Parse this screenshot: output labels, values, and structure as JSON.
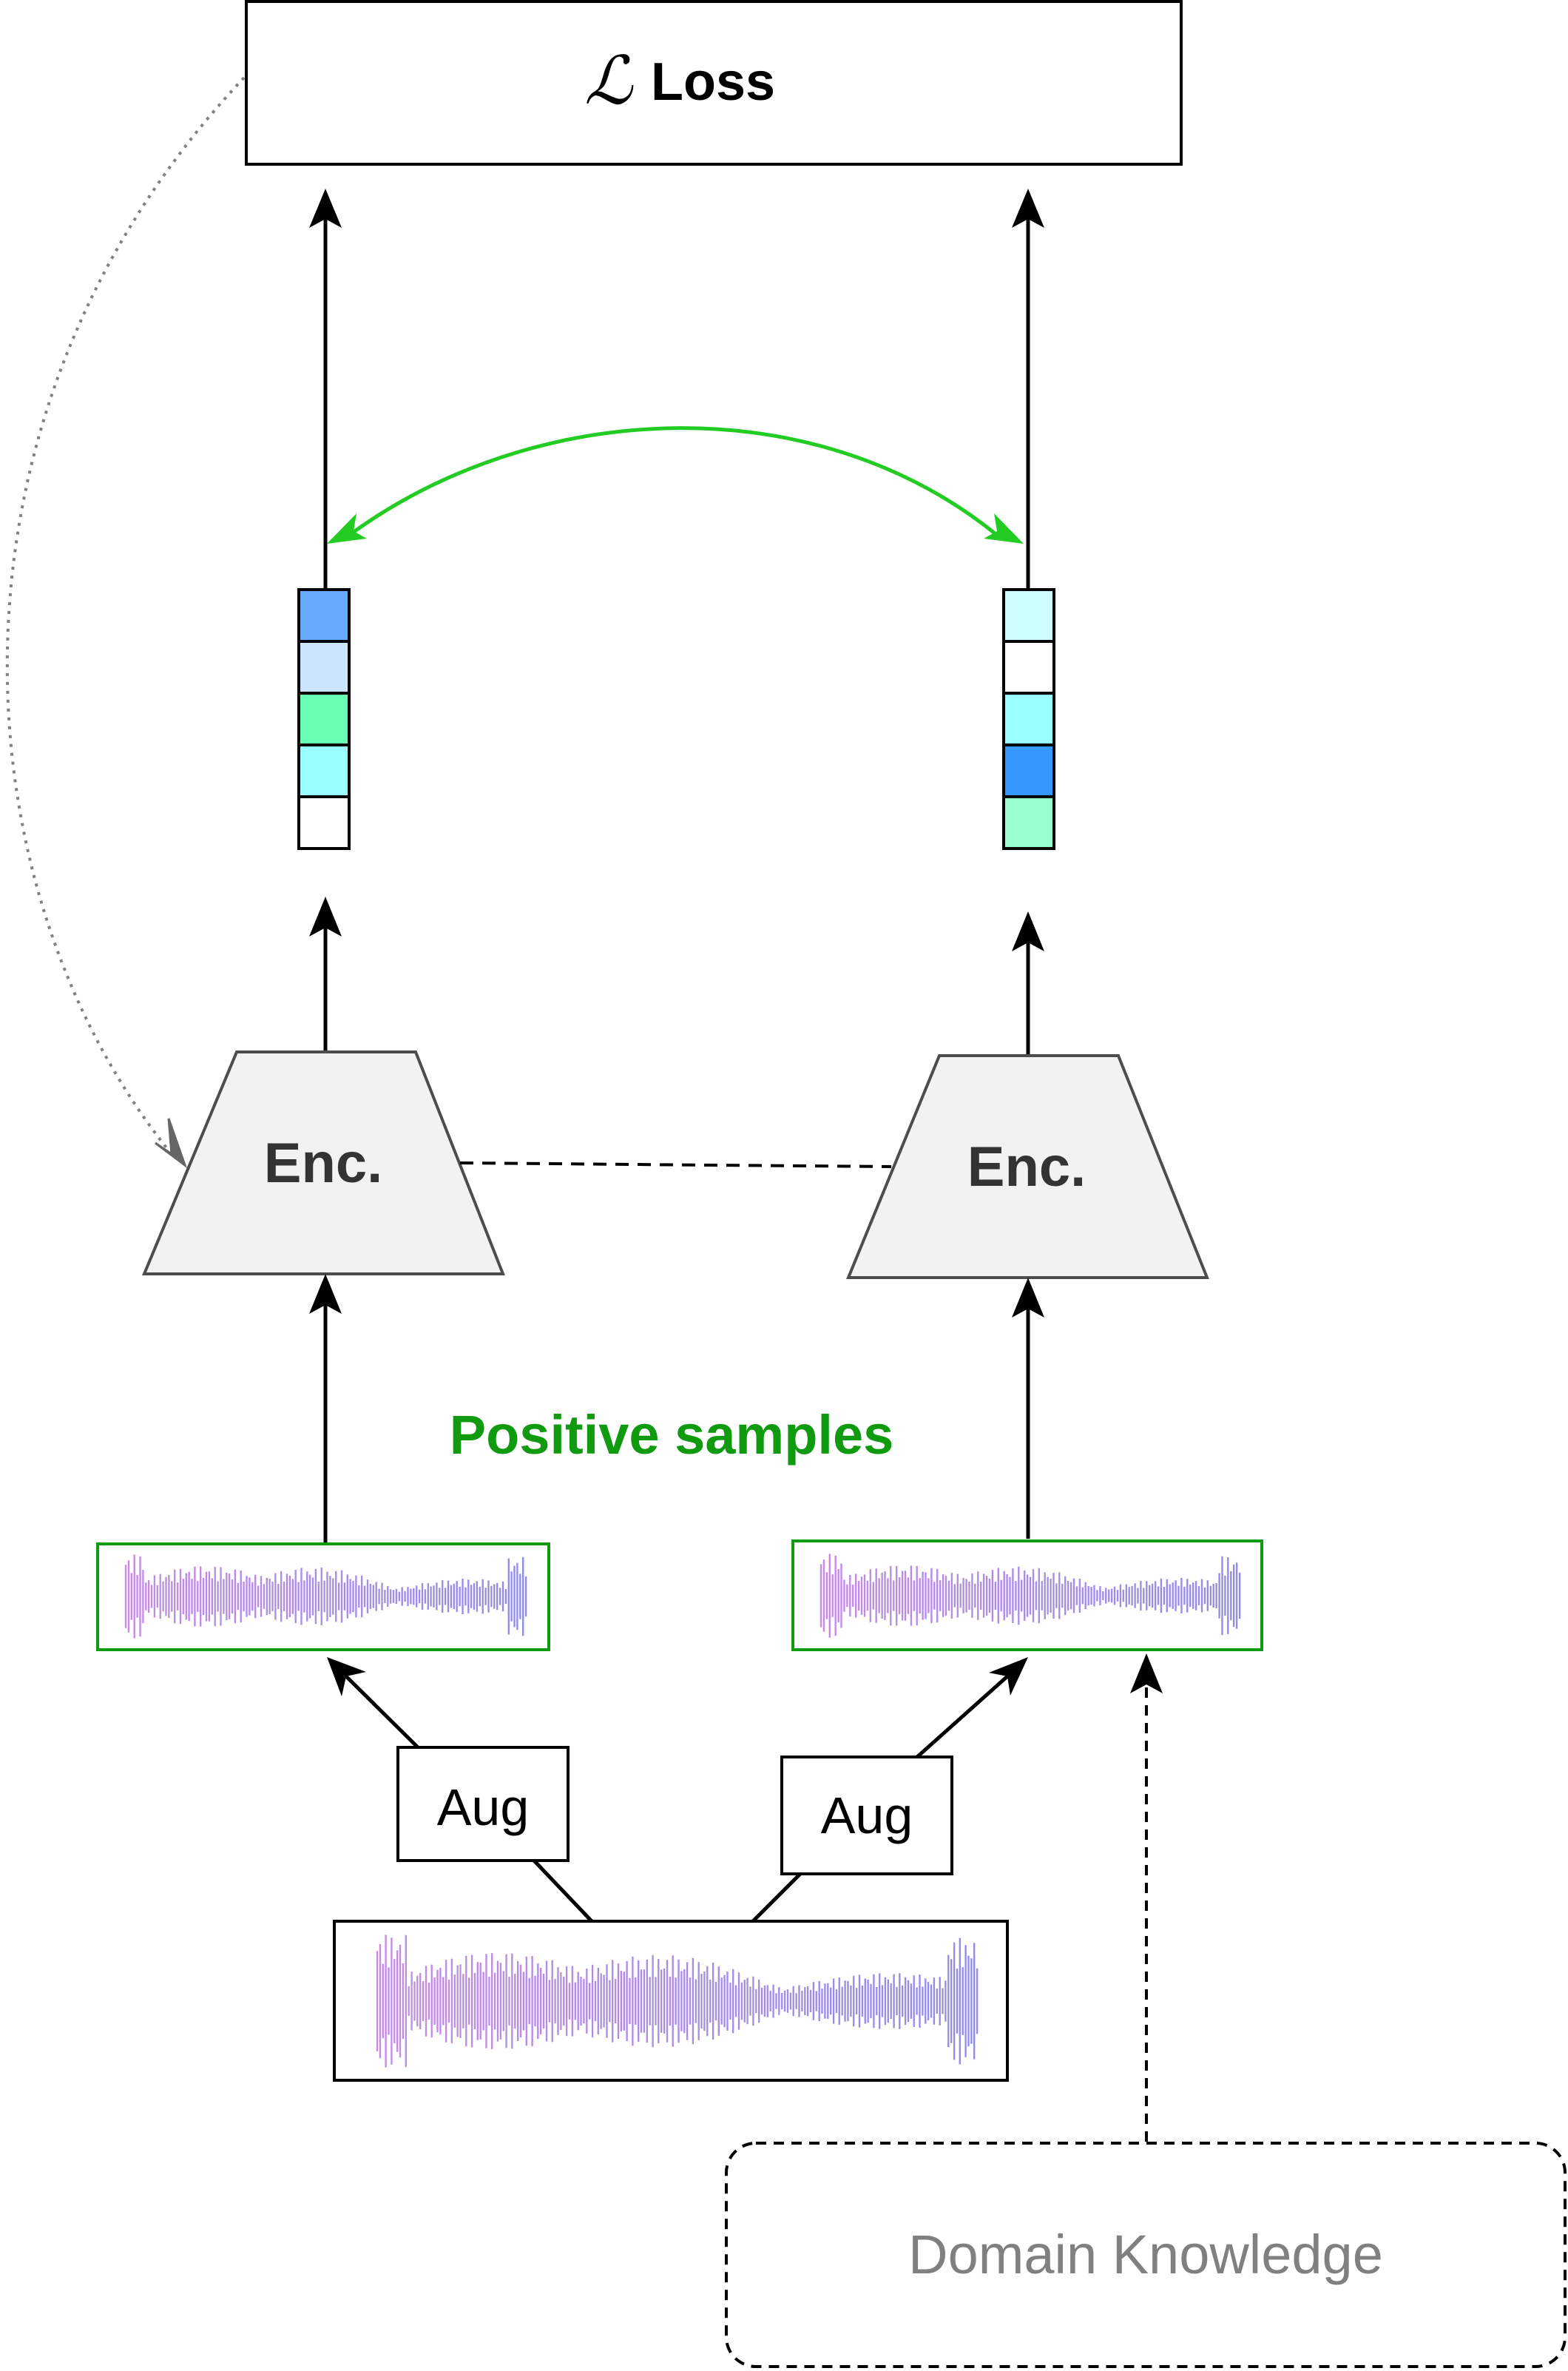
{
  "loss": {
    "symbol": "ℒ",
    "label": "Loss"
  },
  "encoder": {
    "left_label": "Enc.",
    "right_label": "Enc."
  },
  "positive_samples_label": "Positive samples",
  "augmentation": {
    "left_label": "Aug",
    "right_label": "Aug"
  },
  "domain_knowledge_label": "Domain Knowledge",
  "colors": {
    "positive_green": "#109a10",
    "similarity_arrow": "#22cc22",
    "encoder_fill": "#f2f2f2",
    "waveform_start": "#c58be6",
    "waveform_end": "#8f8ce8",
    "muted_text": "#808080"
  },
  "embeddings": {
    "left": [
      "#66aaff",
      "#cce5ff",
      "#66ffb3",
      "#99ffff",
      "#ffffff"
    ],
    "right": [
      "#ccffff",
      "#ffffff",
      "#99ffff",
      "#3399ff",
      "#99ffcc"
    ]
  }
}
